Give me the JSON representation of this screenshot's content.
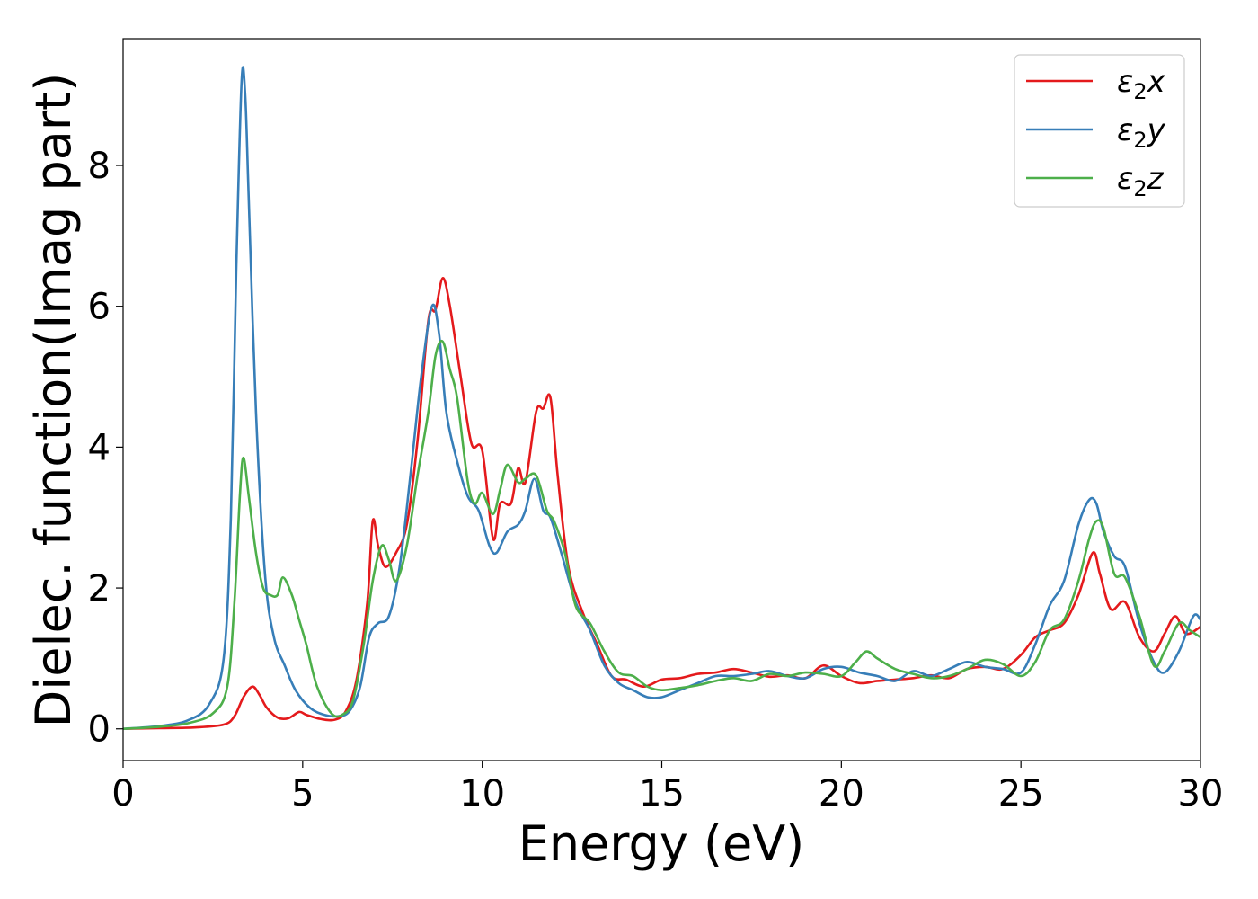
{
  "chart_data": {
    "type": "line",
    "title": "",
    "xlabel": "Energy (eV)",
    "ylabel": "Dielec. function(Imag part)",
    "xlim": [
      0,
      30
    ],
    "ylim": [
      -0.45,
      9.8
    ],
    "xticks": [
      0,
      5,
      10,
      15,
      20,
      25,
      30
    ],
    "yticks": [
      0,
      2,
      4,
      6,
      8
    ],
    "grid": false,
    "legend_position": "top-right",
    "series": [
      {
        "name": "ε2x",
        "legend_main": "ε",
        "legend_sub": "2",
        "legend_axis": "x",
        "color": "#e41a1c",
        "x": [
          0,
          1,
          2,
          2.8,
          3.1,
          3.35,
          3.6,
          3.8,
          4.0,
          4.3,
          4.6,
          4.9,
          5.1,
          5.5,
          5.9,
          6.2,
          6.5,
          6.8,
          6.95,
          7.1,
          7.3,
          7.6,
          7.9,
          8.2,
          8.5,
          8.7,
          8.9,
          9.1,
          9.4,
          9.7,
          10.0,
          10.3,
          10.5,
          10.8,
          11.0,
          11.2,
          11.5,
          11.7,
          11.9,
          12.1,
          12.4,
          12.8,
          13.2,
          13.6,
          14.0,
          14.5,
          15.0,
          15.5,
          16.0,
          16.5,
          17.0,
          17.5,
          18.0,
          18.5,
          19.0,
          19.5,
          20.0,
          20.5,
          21.0,
          21.5,
          22.0,
          22.5,
          23.0,
          23.5,
          24.0,
          24.5,
          25.0,
          25.4,
          25.8,
          26.2,
          26.6,
          27.0,
          27.2,
          27.5,
          27.9,
          28.3,
          28.7,
          29.0,
          29.3,
          29.6,
          30.0
        ],
        "y": [
          0.0,
          0.01,
          0.02,
          0.06,
          0.18,
          0.45,
          0.6,
          0.48,
          0.3,
          0.16,
          0.15,
          0.24,
          0.2,
          0.14,
          0.13,
          0.25,
          0.7,
          1.8,
          2.95,
          2.6,
          2.3,
          2.5,
          2.9,
          4.1,
          5.8,
          5.95,
          6.4,
          6.0,
          5.0,
          4.05,
          3.95,
          2.7,
          3.2,
          3.2,
          3.7,
          3.5,
          4.5,
          4.55,
          4.7,
          3.6,
          2.3,
          1.65,
          1.2,
          0.75,
          0.7,
          0.6,
          0.7,
          0.72,
          0.78,
          0.8,
          0.85,
          0.8,
          0.74,
          0.76,
          0.72,
          0.9,
          0.75,
          0.65,
          0.68,
          0.7,
          0.72,
          0.76,
          0.72,
          0.85,
          0.88,
          0.85,
          1.05,
          1.3,
          1.4,
          1.5,
          1.9,
          2.5,
          2.2,
          1.7,
          1.8,
          1.3,
          1.1,
          1.35,
          1.6,
          1.35,
          1.45
        ]
      },
      {
        "name": "ε2y",
        "legend_main": "ε",
        "legend_sub": "2",
        "legend_axis": "y",
        "color": "#377eb8",
        "x": [
          0,
          1,
          1.8,
          2.4,
          2.8,
          3.0,
          3.15,
          3.3,
          3.4,
          3.5,
          3.7,
          3.95,
          4.2,
          4.5,
          4.8,
          5.2,
          5.6,
          6.0,
          6.3,
          6.6,
          6.85,
          7.1,
          7.4,
          7.7,
          8.0,
          8.3,
          8.6,
          8.8,
          9.0,
          9.3,
          9.6,
          9.9,
          10.2,
          10.4,
          10.7,
          11.0,
          11.2,
          11.45,
          11.7,
          11.9,
          12.2,
          12.6,
          13.0,
          13.4,
          13.8,
          14.2,
          14.6,
          15.0,
          15.5,
          16.0,
          16.5,
          17.0,
          17.5,
          18.0,
          18.5,
          19.0,
          19.5,
          20.0,
          20.5,
          21.0,
          21.5,
          22.0,
          22.5,
          23.0,
          23.5,
          24.0,
          24.5,
          25.0,
          25.4,
          25.8,
          26.2,
          26.6,
          26.9,
          27.1,
          27.3,
          27.6,
          27.9,
          28.3,
          28.7,
          29.0,
          29.4,
          29.8,
          30.0
        ],
        "y": [
          0.0,
          0.04,
          0.12,
          0.35,
          1.0,
          3.0,
          6.5,
          9.2,
          9.0,
          7.5,
          4.5,
          2.2,
          1.3,
          0.9,
          0.55,
          0.3,
          0.2,
          0.18,
          0.25,
          0.6,
          1.3,
          1.5,
          1.6,
          2.3,
          3.6,
          5.0,
          6.0,
          5.6,
          4.5,
          3.8,
          3.3,
          3.1,
          2.6,
          2.5,
          2.8,
          2.9,
          3.1,
          3.55,
          3.1,
          3.0,
          2.5,
          1.8,
          1.4,
          0.9,
          0.65,
          0.55,
          0.45,
          0.45,
          0.55,
          0.65,
          0.75,
          0.75,
          0.78,
          0.82,
          0.75,
          0.72,
          0.85,
          0.88,
          0.8,
          0.75,
          0.68,
          0.82,
          0.75,
          0.85,
          0.95,
          0.88,
          0.85,
          0.8,
          1.2,
          1.75,
          2.1,
          2.9,
          3.25,
          3.2,
          2.8,
          2.45,
          2.3,
          1.5,
          0.95,
          0.8,
          1.1,
          1.6,
          1.55
        ]
      },
      {
        "name": "ε2z",
        "legend_main": "ε",
        "legend_sub": "2",
        "legend_axis": "z",
        "color": "#4daf4a",
        "x": [
          0,
          1,
          1.8,
          2.5,
          2.9,
          3.1,
          3.25,
          3.35,
          3.5,
          3.7,
          3.9,
          4.1,
          4.3,
          4.45,
          4.7,
          4.9,
          5.1,
          5.4,
          5.8,
          6.1,
          6.4,
          6.7,
          6.95,
          7.2,
          7.4,
          7.6,
          7.9,
          8.2,
          8.5,
          8.7,
          8.9,
          9.1,
          9.3,
          9.6,
          9.8,
          10.0,
          10.3,
          10.5,
          10.7,
          11.0,
          11.2,
          11.5,
          11.8,
          12.0,
          12.3,
          12.6,
          13.0,
          13.4,
          13.8,
          14.2,
          14.6,
          15.0,
          15.5,
          16.0,
          16.5,
          17.0,
          17.5,
          18.0,
          18.5,
          19.0,
          19.5,
          20.0,
          20.4,
          20.7,
          21.0,
          21.5,
          22.0,
          22.5,
          23.0,
          23.5,
          24.0,
          24.5,
          25.0,
          25.4,
          25.8,
          26.2,
          26.6,
          26.9,
          27.1,
          27.3,
          27.6,
          27.9,
          28.3,
          28.7,
          29.0,
          29.4,
          29.7,
          30.0
        ],
        "y": [
          0.0,
          0.03,
          0.08,
          0.22,
          0.6,
          1.8,
          3.3,
          3.85,
          3.3,
          2.5,
          2.0,
          1.9,
          1.9,
          2.15,
          1.9,
          1.55,
          1.2,
          0.6,
          0.22,
          0.2,
          0.4,
          1.2,
          2.1,
          2.6,
          2.4,
          2.1,
          2.6,
          3.6,
          4.5,
          5.3,
          5.5,
          5.1,
          4.7,
          3.5,
          3.2,
          3.35,
          3.05,
          3.4,
          3.75,
          3.5,
          3.55,
          3.6,
          3.1,
          2.95,
          2.5,
          1.75,
          1.5,
          1.1,
          0.8,
          0.75,
          0.6,
          0.55,
          0.58,
          0.62,
          0.68,
          0.72,
          0.68,
          0.78,
          0.75,
          0.8,
          0.78,
          0.75,
          0.95,
          1.1,
          1.0,
          0.85,
          0.78,
          0.72,
          0.75,
          0.85,
          0.98,
          0.92,
          0.75,
          0.95,
          1.4,
          1.55,
          2.1,
          2.7,
          2.95,
          2.85,
          2.2,
          2.15,
          1.6,
          0.9,
          1.1,
          1.5,
          1.4,
          1.3
        ]
      }
    ]
  }
}
